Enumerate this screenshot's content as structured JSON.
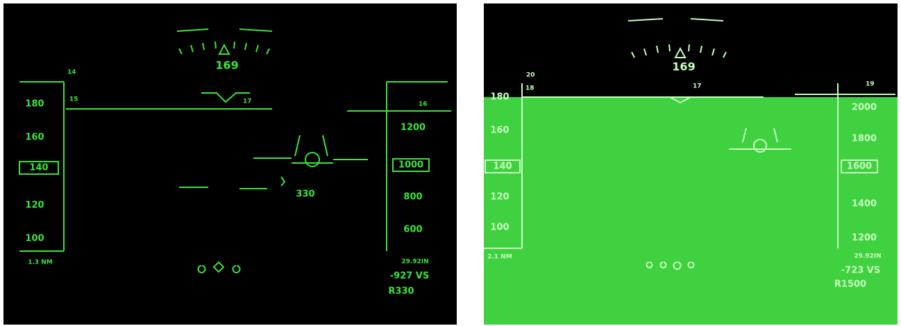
{
  "left": {
    "heading": "169",
    "heading_scale": [
      "14",
      "15",
      "17",
      "16"
    ],
    "speed_tape": [
      "180",
      "160",
      "120",
      "100"
    ],
    "speed_box": "140",
    "range": "1.3 NM",
    "altitude_tape": [
      "1200",
      "800",
      "600"
    ],
    "altitude_box": "1000",
    "ground_speed": "330",
    "baro": "29.92IN",
    "vertical_speed": "-927 VS",
    "radar_altitude": "R330"
  },
  "right": {
    "heading": "169",
    "heading_scale": [
      "20",
      "18",
      "17",
      "19"
    ],
    "speed_tape": [
      "180",
      "160",
      "120",
      "100"
    ],
    "speed_box": "140",
    "range": "2.1 NM",
    "altitude_tape": [
      "2000",
      "1800",
      "1400",
      "1200"
    ],
    "altitude_box": "1600",
    "baro": "29.92IN",
    "vertical_speed": "-723 VS",
    "radar_altitude": "R1500"
  }
}
